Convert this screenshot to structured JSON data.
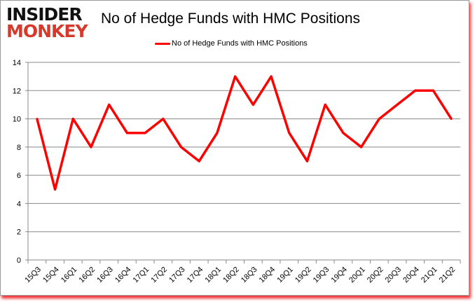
{
  "logo": {
    "line1": "INSIDER",
    "line2": "MONKEY"
  },
  "chart_data": {
    "type": "line",
    "title": "No of Hedge Funds with HMC Positions",
    "xlabel": "",
    "ylabel": "",
    "categories": [
      "15Q3",
      "15Q4",
      "16Q1",
      "16Q2",
      "16Q3",
      "16Q4",
      "17Q1",
      "17Q2",
      "17Q3",
      "17Q4",
      "18Q1",
      "18Q2",
      "18Q3",
      "18Q4",
      "19Q1",
      "19Q2",
      "19Q3",
      "19Q4",
      "20Q1",
      "20Q2",
      "20Q3",
      "20Q4",
      "21Q1",
      "21Q2"
    ],
    "series": [
      {
        "name": "No of Hedge Funds with HMC Positions",
        "color": "#ff0000",
        "values": [
          10,
          5,
          10,
          8,
          11,
          9,
          9,
          10,
          8,
          7,
          9,
          13,
          11,
          13,
          9,
          7,
          11,
          9,
          8,
          10,
          11,
          12,
          12,
          10
        ]
      }
    ],
    "ylim": [
      0,
      14
    ],
    "yticks": [
      0,
      2,
      4,
      6,
      8,
      10,
      12,
      14
    ],
    "grid": true,
    "legend": "top"
  }
}
